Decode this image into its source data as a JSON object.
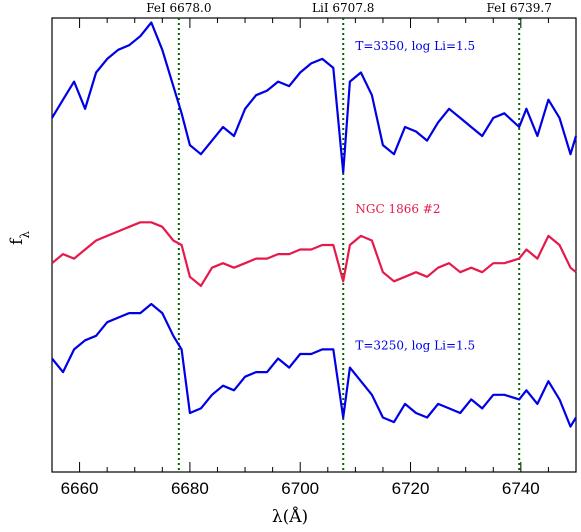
{
  "chart_data": {
    "type": "line",
    "title": "",
    "xlabel": "λ(Å)",
    "ylabel": "f_λ",
    "xlim": [
      6655,
      6750
    ],
    "x_ticks": [
      6660,
      6680,
      6700,
      6720,
      6740
    ],
    "y_ticks_labeled": false,
    "grid": false,
    "line_markers": [
      {
        "label": "FeI 6678.0",
        "x": 6678.0
      },
      {
        "label": "LiI 6707.8",
        "x": 6707.8
      },
      {
        "label": "FeI 6739.7",
        "x": 6739.7
      }
    ],
    "marker_color": "#006400",
    "series": [
      {
        "name": "T=3350, log Li=1.5",
        "color": "#0000e6",
        "x": [
          6655,
          6657,
          6659,
          6661,
          6663,
          6665,
          6667,
          6669,
          6671,
          6673,
          6675,
          6677,
          6678.5,
          6680,
          6682,
          6684,
          6686,
          6688,
          6690,
          6692,
          6694,
          6696,
          6698,
          6700,
          6702,
          6704,
          6706,
          6707.8,
          6709,
          6711,
          6713,
          6715,
          6717,
          6719,
          6721,
          6723,
          6725,
          6727,
          6729,
          6731,
          6733,
          6735,
          6737,
          6739.7,
          6741,
          6743,
          6745,
          6747,
          6749,
          6750
        ],
        "y": [
          0.78,
          0.82,
          0.86,
          0.8,
          0.88,
          0.91,
          0.93,
          0.94,
          0.96,
          0.99,
          0.93,
          0.85,
          0.79,
          0.72,
          0.7,
          0.73,
          0.76,
          0.74,
          0.8,
          0.83,
          0.84,
          0.86,
          0.85,
          0.88,
          0.9,
          0.91,
          0.89,
          0.66,
          0.86,
          0.88,
          0.83,
          0.72,
          0.7,
          0.76,
          0.75,
          0.73,
          0.77,
          0.8,
          0.78,
          0.76,
          0.74,
          0.78,
          0.79,
          0.76,
          0.8,
          0.74,
          0.82,
          0.78,
          0.7,
          0.74
        ]
      },
      {
        "name": "NGC 1866 #2",
        "color": "#e6194b",
        "x": [
          6655,
          6657,
          6659,
          6661,
          6663,
          6665,
          6667,
          6669,
          6671,
          6673,
          6675,
          6677,
          6678.5,
          6680,
          6682,
          6684,
          6686,
          6688,
          6690,
          6692,
          6694,
          6696,
          6698,
          6700,
          6702,
          6704,
          6706,
          6707.8,
          6709,
          6711,
          6713,
          6715,
          6717,
          6719,
          6721,
          6723,
          6725,
          6727,
          6729,
          6731,
          6733,
          6735,
          6737,
          6739.7,
          6741,
          6743,
          6745,
          6747,
          6749,
          6750
        ],
        "y": [
          0.46,
          0.48,
          0.47,
          0.49,
          0.51,
          0.52,
          0.53,
          0.54,
          0.55,
          0.55,
          0.54,
          0.51,
          0.5,
          0.43,
          0.41,
          0.45,
          0.46,
          0.45,
          0.46,
          0.47,
          0.47,
          0.48,
          0.48,
          0.49,
          0.49,
          0.5,
          0.5,
          0.42,
          0.5,
          0.52,
          0.51,
          0.44,
          0.42,
          0.43,
          0.44,
          0.43,
          0.45,
          0.46,
          0.44,
          0.45,
          0.44,
          0.46,
          0.46,
          0.47,
          0.49,
          0.47,
          0.52,
          0.5,
          0.45,
          0.44
        ]
      },
      {
        "name": "T=3250, log Li=1.5",
        "color": "#0000e6",
        "x": [
          6655,
          6657,
          6659,
          6661,
          6663,
          6665,
          6667,
          6669,
          6671,
          6673,
          6675,
          6677,
          6678.5,
          6680,
          6682,
          6684,
          6686,
          6688,
          6690,
          6692,
          6694,
          6696,
          6698,
          6700,
          6702,
          6704,
          6706,
          6707.8,
          6709,
          6711,
          6713,
          6715,
          6717,
          6719,
          6721,
          6723,
          6725,
          6727,
          6729,
          6731,
          6733,
          6735,
          6737,
          6739.7,
          6741,
          6743,
          6745,
          6747,
          6749,
          6750
        ],
        "y": [
          0.25,
          0.22,
          0.27,
          0.29,
          0.3,
          0.33,
          0.34,
          0.35,
          0.35,
          0.37,
          0.35,
          0.3,
          0.27,
          0.13,
          0.14,
          0.17,
          0.19,
          0.18,
          0.21,
          0.22,
          0.22,
          0.25,
          0.23,
          0.26,
          0.26,
          0.27,
          0.27,
          0.12,
          0.23,
          0.2,
          0.17,
          0.12,
          0.11,
          0.15,
          0.13,
          0.12,
          0.15,
          0.14,
          0.13,
          0.16,
          0.14,
          0.17,
          0.17,
          0.16,
          0.18,
          0.15,
          0.2,
          0.16,
          0.1,
          0.12
        ]
      }
    ],
    "annotations": [
      {
        "text": "T=3350, log Li=1.5",
        "series": 0,
        "x": 6710,
        "y": 0.93
      },
      {
        "text": "NGC 1866 #2",
        "series": 1,
        "x": 6710,
        "y": 0.57
      },
      {
        "text": "T=3250, log Li=1.5",
        "series": 2,
        "x": 6710,
        "y": 0.27
      }
    ]
  }
}
